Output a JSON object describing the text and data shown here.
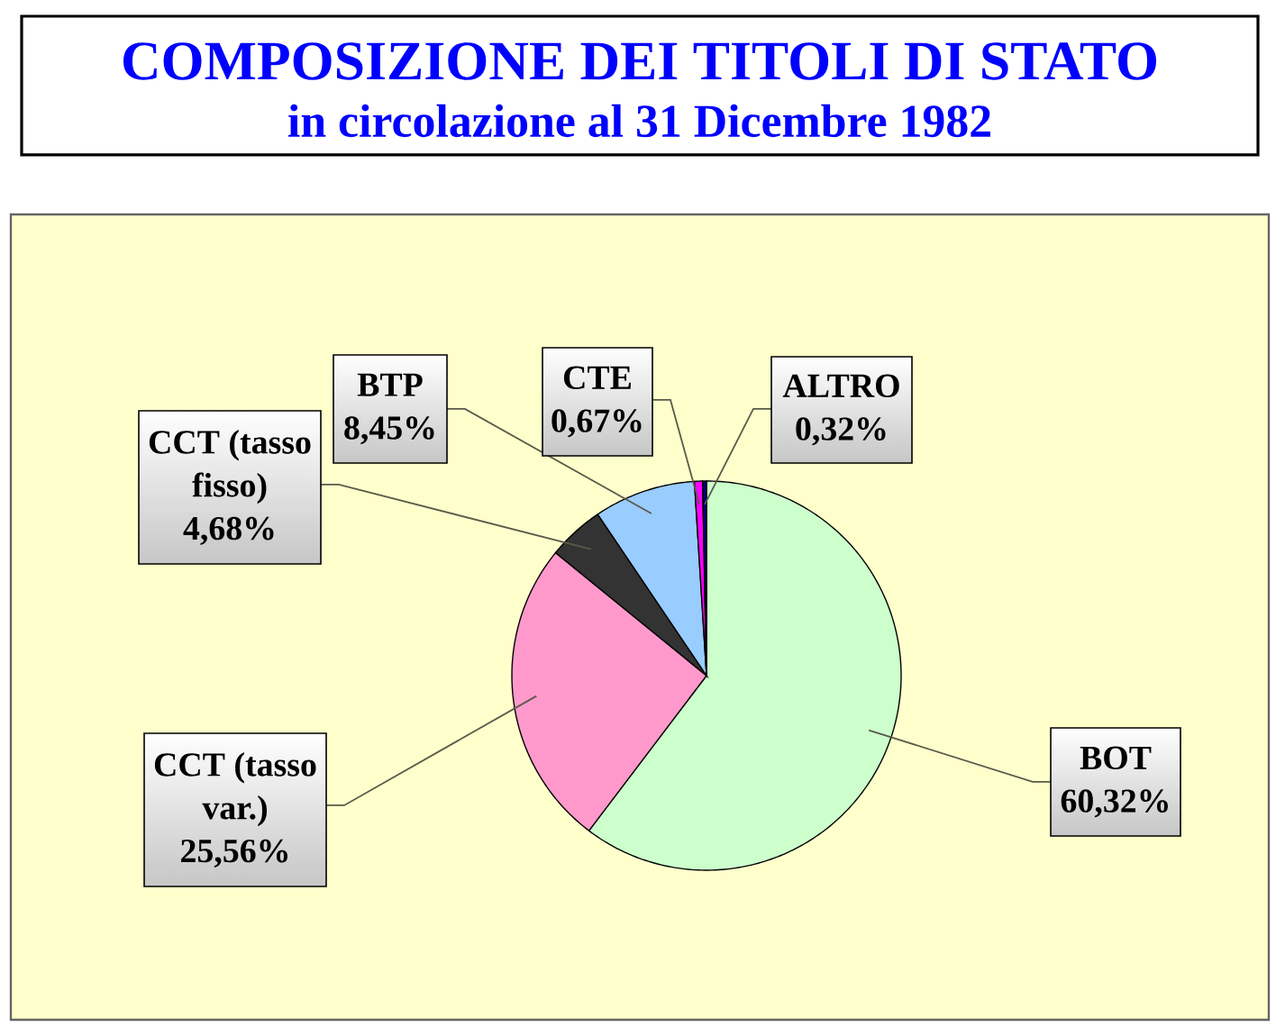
{
  "chart_data": {
    "type": "pie",
    "title": "COMPOSIZIONE DEI TITOLI DI STATO",
    "subtitle": "in circolazione al 31 Dicembre 1982",
    "categories": [
      "BOT",
      "CCT (tasso var.)",
      "CCT (tasso fisso)",
      "BTP",
      "CTE",
      "ALTRO"
    ],
    "values": [
      60.32,
      25.56,
      4.68,
      8.45,
      0.67,
      0.32
    ],
    "colors": [
      "#ccffcc",
      "#ff99cc",
      "#333333",
      "#99ccff",
      "#ff00ff",
      "#000080"
    ],
    "value_labels": [
      "60,32%",
      "25,56%",
      "4,68%",
      "8,45%",
      "0,67%",
      "0,32%"
    ]
  }
}
